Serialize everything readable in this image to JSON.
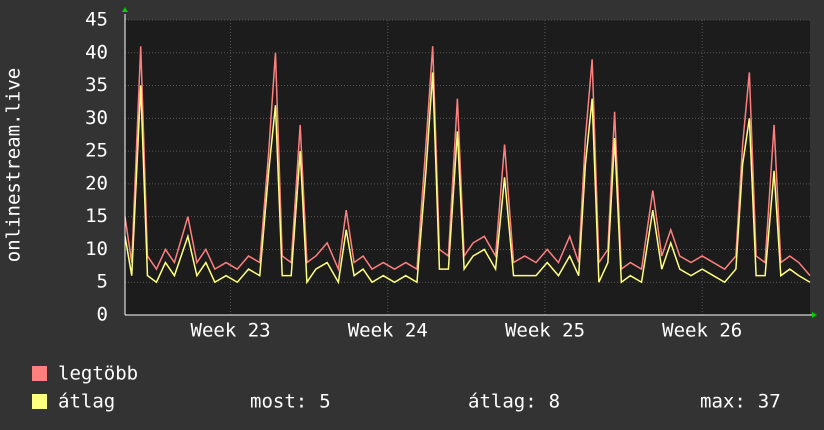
{
  "chart_data": {
    "type": "line",
    "y_label": "onlinestream.live",
    "x": [
      0,
      0.3,
      0.7,
      1.0,
      1.4,
      1.8,
      2.2,
      2.8,
      3.2,
      3.6,
      4.0,
      4.5,
      5.0,
      5.5,
      6.0,
      6.4,
      6.7,
      7.0,
      7.4,
      7.8,
      8.1,
      8.5,
      9.0,
      9.5,
      9.85,
      10.2,
      10.6,
      11.0,
      11.5,
      12.0,
      12.5,
      13.0,
      13.4,
      13.7,
      14.0,
      14.4,
      14.8,
      15.1,
      15.5,
      16.0,
      16.5,
      16.9,
      17.3,
      17.8,
      18.3,
      18.8,
      19.3,
      19.8,
      20.2,
      20.5,
      20.8,
      21.1,
      21.5,
      21.8,
      22.1,
      22.5,
      23.0,
      23.5,
      23.9,
      24.3,
      24.7,
      25.2,
      25.7,
      26.2,
      26.7,
      27.2,
      27.5,
      27.8,
      28.1,
      28.5,
      28.9,
      29.2,
      29.6,
      30.0,
      30.5
    ],
    "series": [
      {
        "name": "legtöbb",
        "color": "#ff7f7f",
        "values": [
          15,
          8,
          41,
          9,
          7,
          10,
          8,
          15,
          8,
          10,
          7,
          8,
          7,
          9,
          8,
          25,
          40,
          9,
          8,
          29,
          8,
          9,
          11,
          7,
          16,
          8,
          9,
          7,
          8,
          7,
          8,
          7,
          26,
          41,
          10,
          9,
          33,
          9,
          11,
          12,
          9,
          26,
          8,
          9,
          8,
          10,
          8,
          12,
          8,
          27,
          39,
          8,
          10,
          31,
          7,
          8,
          7,
          19,
          9,
          13,
          9,
          8,
          9,
          8,
          7,
          9,
          26,
          37,
          9,
          8,
          29,
          8,
          9,
          8,
          6
        ]
      },
      {
        "name": "átlag",
        "color": "#ffff7f",
        "values": [
          12,
          6,
          35,
          6,
          5,
          8,
          6,
          12,
          6,
          8,
          5,
          6,
          5,
          7,
          6,
          22,
          32,
          6,
          6,
          25,
          5,
          7,
          8,
          5,
          13,
          6,
          7,
          5,
          6,
          5,
          6,
          5,
          22,
          37,
          7,
          7,
          28,
          7,
          9,
          10,
          7,
          21,
          6,
          6,
          6,
          8,
          6,
          9,
          6,
          23,
          33,
          5,
          8,
          27,
          5,
          6,
          5,
          16,
          7,
          11,
          7,
          6,
          7,
          6,
          5,
          7,
          23,
          30,
          6,
          6,
          22,
          6,
          7,
          6,
          5
        ]
      }
    ],
    "xlim": [
      0,
      30.5
    ],
    "xticks": [
      {
        "value": 4.7,
        "label": "Week 23"
      },
      {
        "value": 11.7,
        "label": "Week 24"
      },
      {
        "value": 18.7,
        "label": "Week 25"
      },
      {
        "value": 25.7,
        "label": "Week 26"
      }
    ],
    "ylim": [
      0,
      45
    ],
    "yticks": [
      0,
      5,
      10,
      15,
      20,
      25,
      30,
      35,
      40,
      45
    ],
    "grid": true,
    "stats": [
      {
        "label": "most:",
        "value": 5
      },
      {
        "label": "átlag:",
        "value": 8
      },
      {
        "label": "max:",
        "value": 37
      }
    ]
  }
}
